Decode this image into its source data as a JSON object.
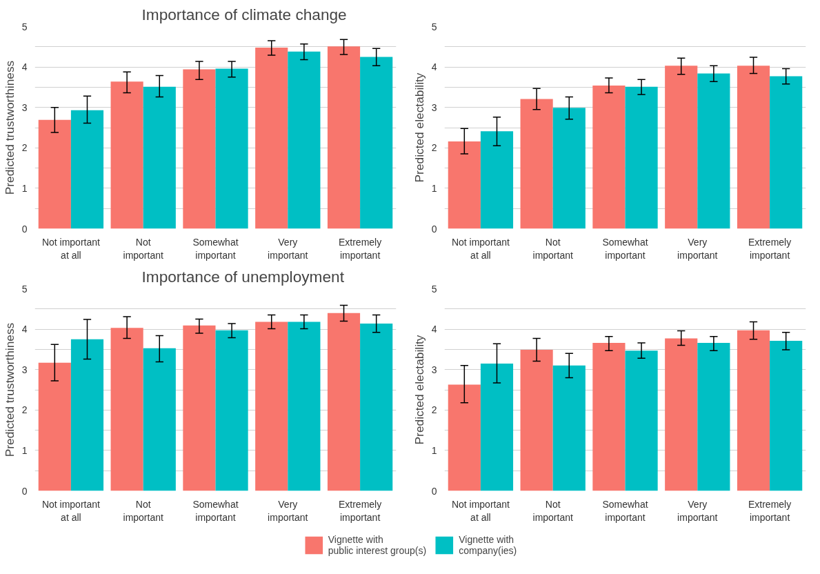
{
  "chart_data": [
    {
      "type": "bar",
      "title": "Importance of climate change",
      "ylabel": "Predicted trustworthiness",
      "categories": [
        "Not important\nat all",
        "Not\nimportant",
        "Somewhat\nimportant",
        "Very\nimportant",
        "Extremely\nimportant"
      ],
      "ylim": [
        0,
        5
      ],
      "yticks": [
        0,
        {
          "value": 0.5,
          "label": null
        },
        1,
        {
          "value": 1.5,
          "label": null
        },
        2,
        {
          "value": 2.5,
          "label": null
        },
        3,
        {
          "value": 3.5,
          "label": null
        },
        4,
        {
          "value": 4.5,
          "label": null
        },
        5
      ],
      "grid": "y",
      "series": [
        {
          "color": "#f8766d",
          "values": [
            2.69,
            3.64,
            3.94,
            4.48,
            4.51
          ],
          "errors": [
            [
              2.38,
              3.0
            ],
            [
              3.36,
              3.88
            ],
            [
              3.69,
              4.14
            ],
            [
              4.29,
              4.65
            ],
            [
              4.31,
              4.68
            ]
          ]
        },
        {
          "color": "#00bfc4",
          "values": [
            2.93,
            3.51,
            3.96,
            4.38,
            4.25
          ],
          "errors": [
            [
              2.61,
              3.28
            ],
            [
              3.26,
              3.79
            ],
            [
              3.75,
              4.14
            ],
            [
              4.18,
              4.57
            ],
            [
              4.03,
              4.46
            ]
          ]
        }
      ]
    },
    {
      "type": "bar",
      "ylabel": "Predicted electability",
      "categories": [
        "Not important\nat all",
        "Not\nimportant",
        "Somewhat\nimportant",
        "Very\nimportant",
        "Extremely\nimportant"
      ],
      "ylim": [
        0,
        5
      ],
      "yticks": [
        0,
        {
          "value": 0.5,
          "label": null
        },
        1,
        {
          "value": 1.5,
          "label": null
        },
        2,
        {
          "value": 2.5,
          "label": null
        },
        3,
        {
          "value": 3.5,
          "label": null
        },
        4,
        {
          "value": 4.5,
          "label": null
        },
        5
      ],
      "grid": "y",
      "series": [
        {
          "color": "#f8766d",
          "values": [
            2.16,
            3.21,
            3.54,
            4.03,
            4.03
          ],
          "errors": [
            [
              1.85,
              2.48
            ],
            [
              2.95,
              3.47
            ],
            [
              3.36,
              3.73
            ],
            [
              3.82,
              4.22
            ],
            [
              3.84,
              4.24
            ]
          ]
        },
        {
          "color": "#00bfc4",
          "values": [
            2.41,
            2.99,
            3.51,
            3.84,
            3.77
          ],
          "errors": [
            [
              2.05,
              2.76
            ],
            [
              2.71,
              3.26
            ],
            [
              3.32,
              3.69
            ],
            [
              3.64,
              4.03
            ],
            [
              3.58,
              3.96
            ]
          ]
        }
      ]
    },
    {
      "type": "bar",
      "title": "Importance of unemployment",
      "ylabel": "Predicted trustworthiness",
      "categories": [
        "Not important\nat all",
        "Not\nimportant",
        "Somewhat\nimportant",
        "Very\nimportant",
        "Extremely\nimportant"
      ],
      "ylim": [
        0,
        5
      ],
      "yticks": [
        0,
        {
          "value": 0.5,
          "label": null
        },
        1,
        {
          "value": 1.5,
          "label": null
        },
        2,
        {
          "value": 2.5,
          "label": null
        },
        3,
        {
          "value": 3.5,
          "label": null
        },
        4,
        {
          "value": 4.5,
          "label": null
        },
        5
      ],
      "grid": "y",
      "series": [
        {
          "color": "#f8766d",
          "values": [
            3.17,
            4.03,
            4.09,
            4.18,
            4.4
          ],
          "errors": [
            [
              2.72,
              3.62
            ],
            [
              3.77,
              4.31
            ],
            [
              3.9,
              4.25
            ],
            [
              4.01,
              4.35
            ],
            [
              4.2,
              4.59
            ]
          ]
        },
        {
          "color": "#00bfc4",
          "values": [
            3.75,
            3.53,
            3.97,
            4.18,
            4.14
          ],
          "errors": [
            [
              3.26,
              4.24
            ],
            [
              3.19,
              3.84
            ],
            [
              3.79,
              4.14
            ],
            [
              4.01,
              4.35
            ],
            [
              3.92,
              4.35
            ]
          ]
        }
      ]
    },
    {
      "type": "bar",
      "ylabel": "Predicted electability",
      "categories": [
        "Not important\nat all",
        "Not\nimportant",
        "Somewhat\nimportant",
        "Very\nimportant",
        "Extremely\nimportant"
      ],
      "ylim": [
        0,
        5
      ],
      "yticks": [
        0,
        {
          "value": 0.5,
          "label": null
        },
        1,
        {
          "value": 1.5,
          "label": null
        },
        2,
        {
          "value": 2.5,
          "label": null
        },
        3,
        {
          "value": 3.5,
          "label": null
        },
        4,
        {
          "value": 4.5,
          "label": null
        },
        5
      ],
      "grid": "y",
      "legend": "bottom",
      "series": [
        {
          "name": "Vignette with\npublic interest group(s)",
          "color": "#f8766d",
          "values": [
            2.63,
            3.49,
            3.66,
            3.77,
            3.97
          ],
          "errors": [
            [
              2.18,
              3.1
            ],
            [
              3.21,
              3.77
            ],
            [
              3.47,
              3.82
            ],
            [
              3.6,
              3.96
            ],
            [
              3.75,
              4.18
            ]
          ]
        },
        {
          "name": "Vignette with\ncompany(ies)",
          "color": "#00bfc4",
          "values": [
            3.15,
            3.1,
            3.47,
            3.66,
            3.71
          ],
          "errors": [
            [
              2.67,
              3.64
            ],
            [
              2.8,
              3.4
            ],
            [
              3.28,
              3.66
            ],
            [
              3.47,
              3.82
            ],
            [
              3.49,
              3.92
            ]
          ]
        }
      ]
    }
  ]
}
